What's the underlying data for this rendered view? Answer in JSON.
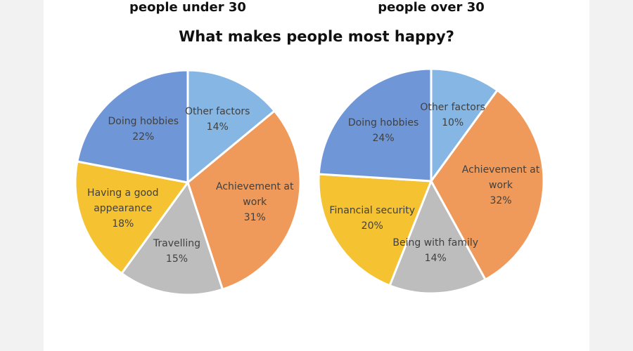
{
  "title": "What makes people most happy?",
  "chart_data": [
    {
      "type": "pie",
      "title": "people under 30",
      "categories": [
        "Other factors",
        "Achievement at work",
        "Travelling",
        "Having a good appearance",
        "Doing hobbies"
      ],
      "values": [
        14,
        31,
        15,
        18,
        22
      ],
      "value_labels": [
        "14%",
        "31%",
        "15%",
        "18%",
        "22%"
      ],
      "colors": [
        "#86b6e4",
        "#ef9a5a",
        "#bdbdbd",
        "#f5c232",
        "#6f97d8"
      ]
    },
    {
      "type": "pie",
      "title": "people over 30",
      "categories": [
        "Other factors",
        "Achievement at work",
        "Being with family",
        "Financial security",
        "Doing hobbies"
      ],
      "values": [
        10,
        32,
        14,
        20,
        24
      ],
      "value_labels": [
        "10%",
        "32%",
        "14%",
        "20%",
        "24%"
      ],
      "colors": [
        "#86b6e4",
        "#ef9a5a",
        "#bdbdbd",
        "#f5c232",
        "#6f97d8"
      ]
    }
  ]
}
